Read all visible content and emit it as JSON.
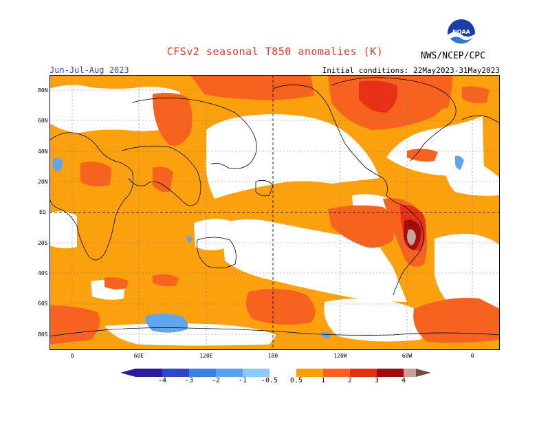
{
  "header": {
    "title": "CFSv2 seasonal T850 anomalies (K)",
    "season": "Jun-Jul-Aug 2023",
    "initial_conditions": "Initial conditions: 22May2023-31May2023",
    "agency": "NWS/NCEP/CPC",
    "logo_text": "NOAA"
  },
  "map": {
    "projection": "cylindrical equidistant, Pacific-centered",
    "lat_labels": [
      "80N",
      "60N",
      "40N",
      "20N",
      "EQ",
      "20S",
      "40S",
      "60S",
      "80S"
    ],
    "lon_labels": [
      "0",
      "60E",
      "120E",
      "180",
      "120W",
      "60W",
      "0"
    ],
    "background_color": "#ffffff",
    "coastline_color": "#000000",
    "gridline_style": "dashed"
  },
  "colorbar": {
    "labels": [
      "-4",
      "-3",
      "-2",
      "-1",
      "-0.5",
      "0.5",
      "1",
      "2",
      "3",
      "4"
    ],
    "colors": [
      "#2a1a9e",
      "#2f48c8",
      "#3b7fe0",
      "#5aa0ec",
      "#8ec8f4",
      "#ffffff",
      "#fa9e0a",
      "#f86020",
      "#e23214",
      "#a00a0a",
      "#c8a096",
      "#7a4a40"
    ],
    "units": "K"
  },
  "legend_colors": {
    "orange": "#fba10e",
    "red_orange": "#f7621f",
    "red": "#e83016",
    "dark_red": "#a30d0d",
    "brown_gray": "#c6a39a",
    "light_blue": "#5fa6ef"
  }
}
